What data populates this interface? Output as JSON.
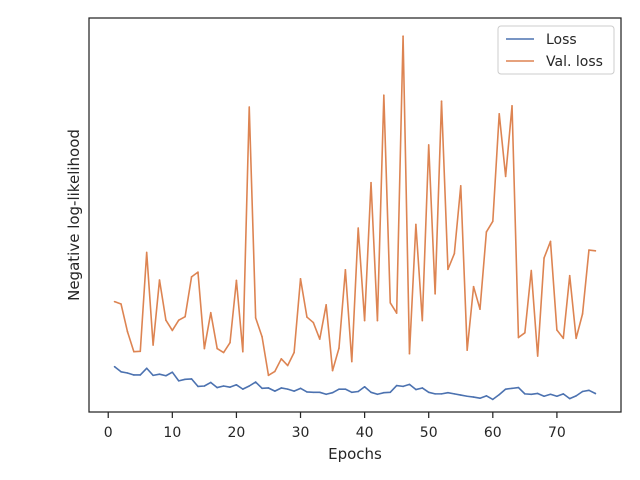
{
  "chart_data": {
    "type": "line",
    "xlabel": "Epochs",
    "ylabel": "Negative log-likelihood",
    "xlim": [
      -3,
      80
    ],
    "ylim": [
      0,
      1
    ],
    "xticks": [
      0,
      10,
      20,
      30,
      40,
      50,
      60,
      70
    ],
    "show_yticks": false,
    "grid": false,
    "legend": "top-right",
    "series": [
      {
        "name": "Loss",
        "color": "#4c72b0",
        "x": [
          1,
          2,
          3,
          4,
          5,
          6,
          7,
          8,
          9,
          10,
          11,
          12,
          13,
          14,
          15,
          16,
          17,
          18,
          19,
          20,
          21,
          22,
          23,
          24,
          25,
          26,
          27,
          28,
          29,
          30,
          31,
          32,
          33,
          34,
          35,
          36,
          37,
          38,
          39,
          40,
          41,
          42,
          43,
          44,
          45,
          46,
          47,
          48,
          49,
          50,
          51,
          52,
          53,
          54,
          55,
          56,
          57,
          58,
          59,
          60,
          61,
          62,
          63,
          64,
          65,
          66,
          67,
          68,
          69,
          70,
          71,
          72,
          73,
          74,
          75,
          76
        ],
        "y": [
          0.115,
          0.102,
          0.099,
          0.094,
          0.094,
          0.111,
          0.093,
          0.096,
          0.092,
          0.101,
          0.079,
          0.083,
          0.084,
          0.065,
          0.066,
          0.075,
          0.062,
          0.066,
          0.063,
          0.069,
          0.058,
          0.066,
          0.076,
          0.06,
          0.061,
          0.053,
          0.061,
          0.058,
          0.053,
          0.06,
          0.051,
          0.05,
          0.05,
          0.045,
          0.049,
          0.058,
          0.058,
          0.05,
          0.052,
          0.064,
          0.05,
          0.045,
          0.049,
          0.05,
          0.067,
          0.065,
          0.07,
          0.057,
          0.061,
          0.05,
          0.046,
          0.046,
          0.049,
          0.046,
          0.043,
          0.04,
          0.038,
          0.035,
          0.041,
          0.032,
          0.044,
          0.058,
          0.06,
          0.062,
          0.046,
          0.045,
          0.047,
          0.04,
          0.045,
          0.04,
          0.046,
          0.034,
          0.041,
          0.052,
          0.055,
          0.047
        ]
      },
      {
        "name": "Val. loss",
        "color": "#dd8452",
        "x": [
          1,
          2,
          3,
          4,
          5,
          6,
          7,
          8,
          9,
          10,
          11,
          12,
          13,
          14,
          15,
          16,
          17,
          18,
          19,
          20,
          21,
          22,
          23,
          24,
          25,
          26,
          27,
          28,
          29,
          30,
          31,
          32,
          33,
          34,
          35,
          36,
          37,
          38,
          39,
          40,
          41,
          42,
          43,
          44,
          45,
          46,
          47,
          48,
          49,
          50,
          51,
          52,
          53,
          54,
          55,
          56,
          57,
          58,
          59,
          60,
          61,
          62,
          63,
          64,
          65,
          66,
          67,
          68,
          69,
          70,
          71,
          72,
          73,
          74,
          75,
          76
        ],
        "y": [
          0.28,
          0.274,
          0.204,
          0.153,
          0.154,
          0.405,
          0.17,
          0.335,
          0.233,
          0.207,
          0.233,
          0.242,
          0.343,
          0.355,
          0.161,
          0.252,
          0.161,
          0.151,
          0.176,
          0.334,
          0.153,
          0.774,
          0.239,
          0.191,
          0.093,
          0.103,
          0.135,
          0.118,
          0.151,
          0.338,
          0.241,
          0.227,
          0.185,
          0.272,
          0.105,
          0.162,
          0.361,
          0.128,
          0.467,
          0.232,
          0.582,
          0.232,
          0.804,
          0.277,
          0.251,
          0.954,
          0.148,
          0.476,
          0.232,
          0.678,
          0.3,
          0.789,
          0.362,
          0.402,
          0.574,
          0.157,
          0.318,
          0.261,
          0.457,
          0.484,
          0.757,
          0.598,
          0.777,
          0.189,
          0.201,
          0.359,
          0.142,
          0.391,
          0.433,
          0.208,
          0.187,
          0.346,
          0.187,
          0.249,
          0.411,
          0.409
        ]
      }
    ]
  }
}
